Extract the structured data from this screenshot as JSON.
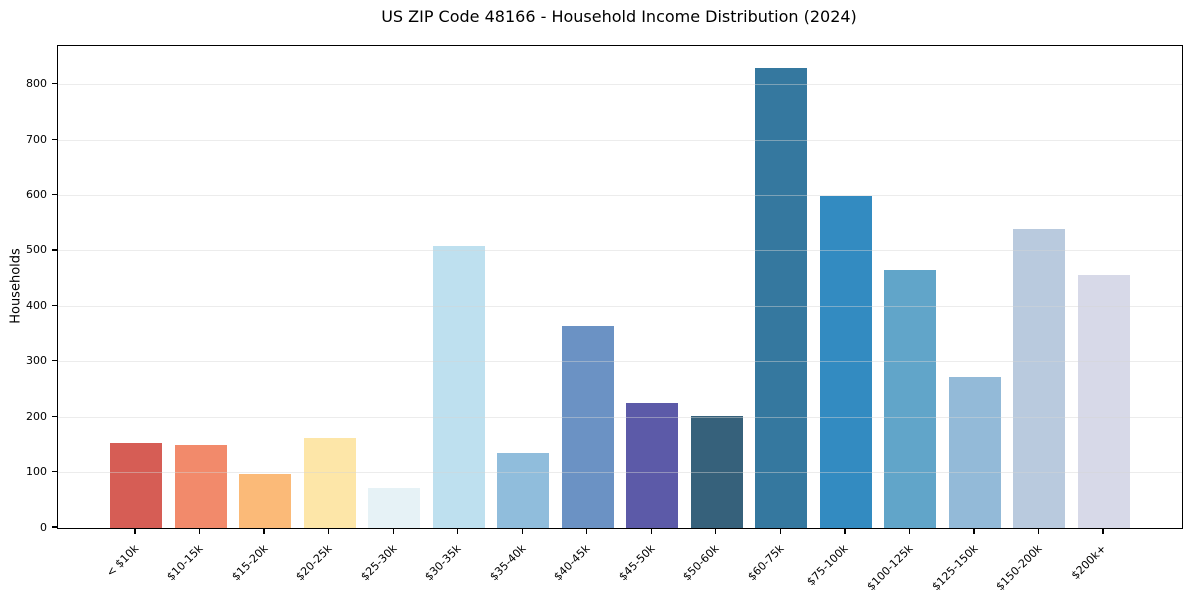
{
  "chart_data": {
    "type": "bar",
    "title": "US ZIP Code 48166 - Household Income Distribution (2024)",
    "ylabel": "Households",
    "xlabel": "",
    "categories": [
      "< $10k",
      "$10-15k",
      "$15-20k",
      "$20-25k",
      "$25-30k",
      "$30-35k",
      "$35-40k",
      "$40-45k",
      "$45-50k",
      "$50-60k",
      "$60-75k",
      "$75-100k",
      "$100-125k",
      "$125-150k",
      "$150-200k",
      "$200k+"
    ],
    "values": [
      153,
      149,
      97,
      163,
      73,
      509,
      135,
      365,
      225,
      203,
      830,
      600,
      465,
      273,
      540,
      457
    ],
    "bar_colors": [
      "#d65d55",
      "#f28a6b",
      "#fbba78",
      "#fde6a8",
      "#e6f2f6",
      "#bee0ef",
      "#90bddc",
      "#6b92c4",
      "#5c5aa8",
      "#36617b",
      "#35789f",
      "#338bc1",
      "#61a5c9",
      "#93bad8",
      "#b9cade",
      "#d7d9e8"
    ],
    "ylim": [
      0,
      870
    ],
    "yticks": [
      0,
      100,
      200,
      300,
      400,
      500,
      600,
      700,
      800
    ],
    "grid": "horizontal, drawn above bars",
    "legend": "none",
    "colors": {
      "axis": "#000000",
      "gridline": "#e7e7e7",
      "text": "#000000",
      "background": "#ffffff"
    }
  }
}
